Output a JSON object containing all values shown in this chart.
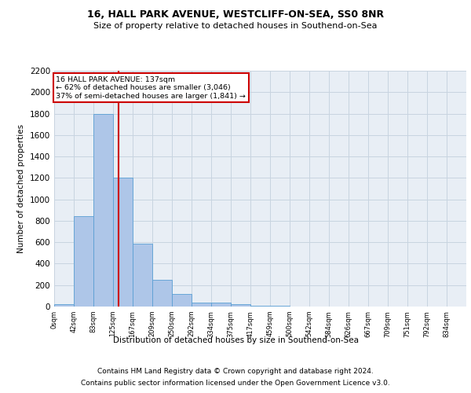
{
  "title1": "16, HALL PARK AVENUE, WESTCLIFF-ON-SEA, SS0 8NR",
  "title2": "Size of property relative to detached houses in Southend-on-Sea",
  "xlabel": "Distribution of detached houses by size in Southend-on-Sea",
  "ylabel": "Number of detached properties",
  "footer1": "Contains HM Land Registry data © Crown copyright and database right 2024.",
  "footer2": "Contains public sector information licensed under the Open Government Licence v3.0.",
  "annotation_line1": "16 HALL PARK AVENUE: 137sqm",
  "annotation_line2": "← 62% of detached houses are smaller (3,046)",
  "annotation_line3": "37% of semi-detached houses are larger (1,841) →",
  "property_size": 137,
  "bin_edges": [
    0,
    42,
    83,
    125,
    167,
    209,
    250,
    292,
    334,
    375,
    417,
    459,
    500,
    542,
    584,
    626,
    667,
    709,
    751,
    792,
    834
  ],
  "bar_heights": [
    20,
    840,
    1800,
    1200,
    590,
    250,
    120,
    40,
    40,
    25,
    10,
    5,
    0,
    0,
    0,
    0,
    0,
    0,
    0,
    0
  ],
  "bar_color": "#aec6e8",
  "bar_edge_color": "#5a9fd4",
  "red_line_color": "#cc0000",
  "annotation_box_color": "#cc0000",
  "ylim": [
    0,
    2200
  ],
  "yticks": [
    0,
    200,
    400,
    600,
    800,
    1000,
    1200,
    1400,
    1600,
    1800,
    2000,
    2200
  ],
  "grid_color": "#c8d4e0",
  "bg_color": "#e8eef5",
  "title1_fontsize": 9,
  "title2_fontsize": 8,
  "footer_fontsize": 6.5
}
